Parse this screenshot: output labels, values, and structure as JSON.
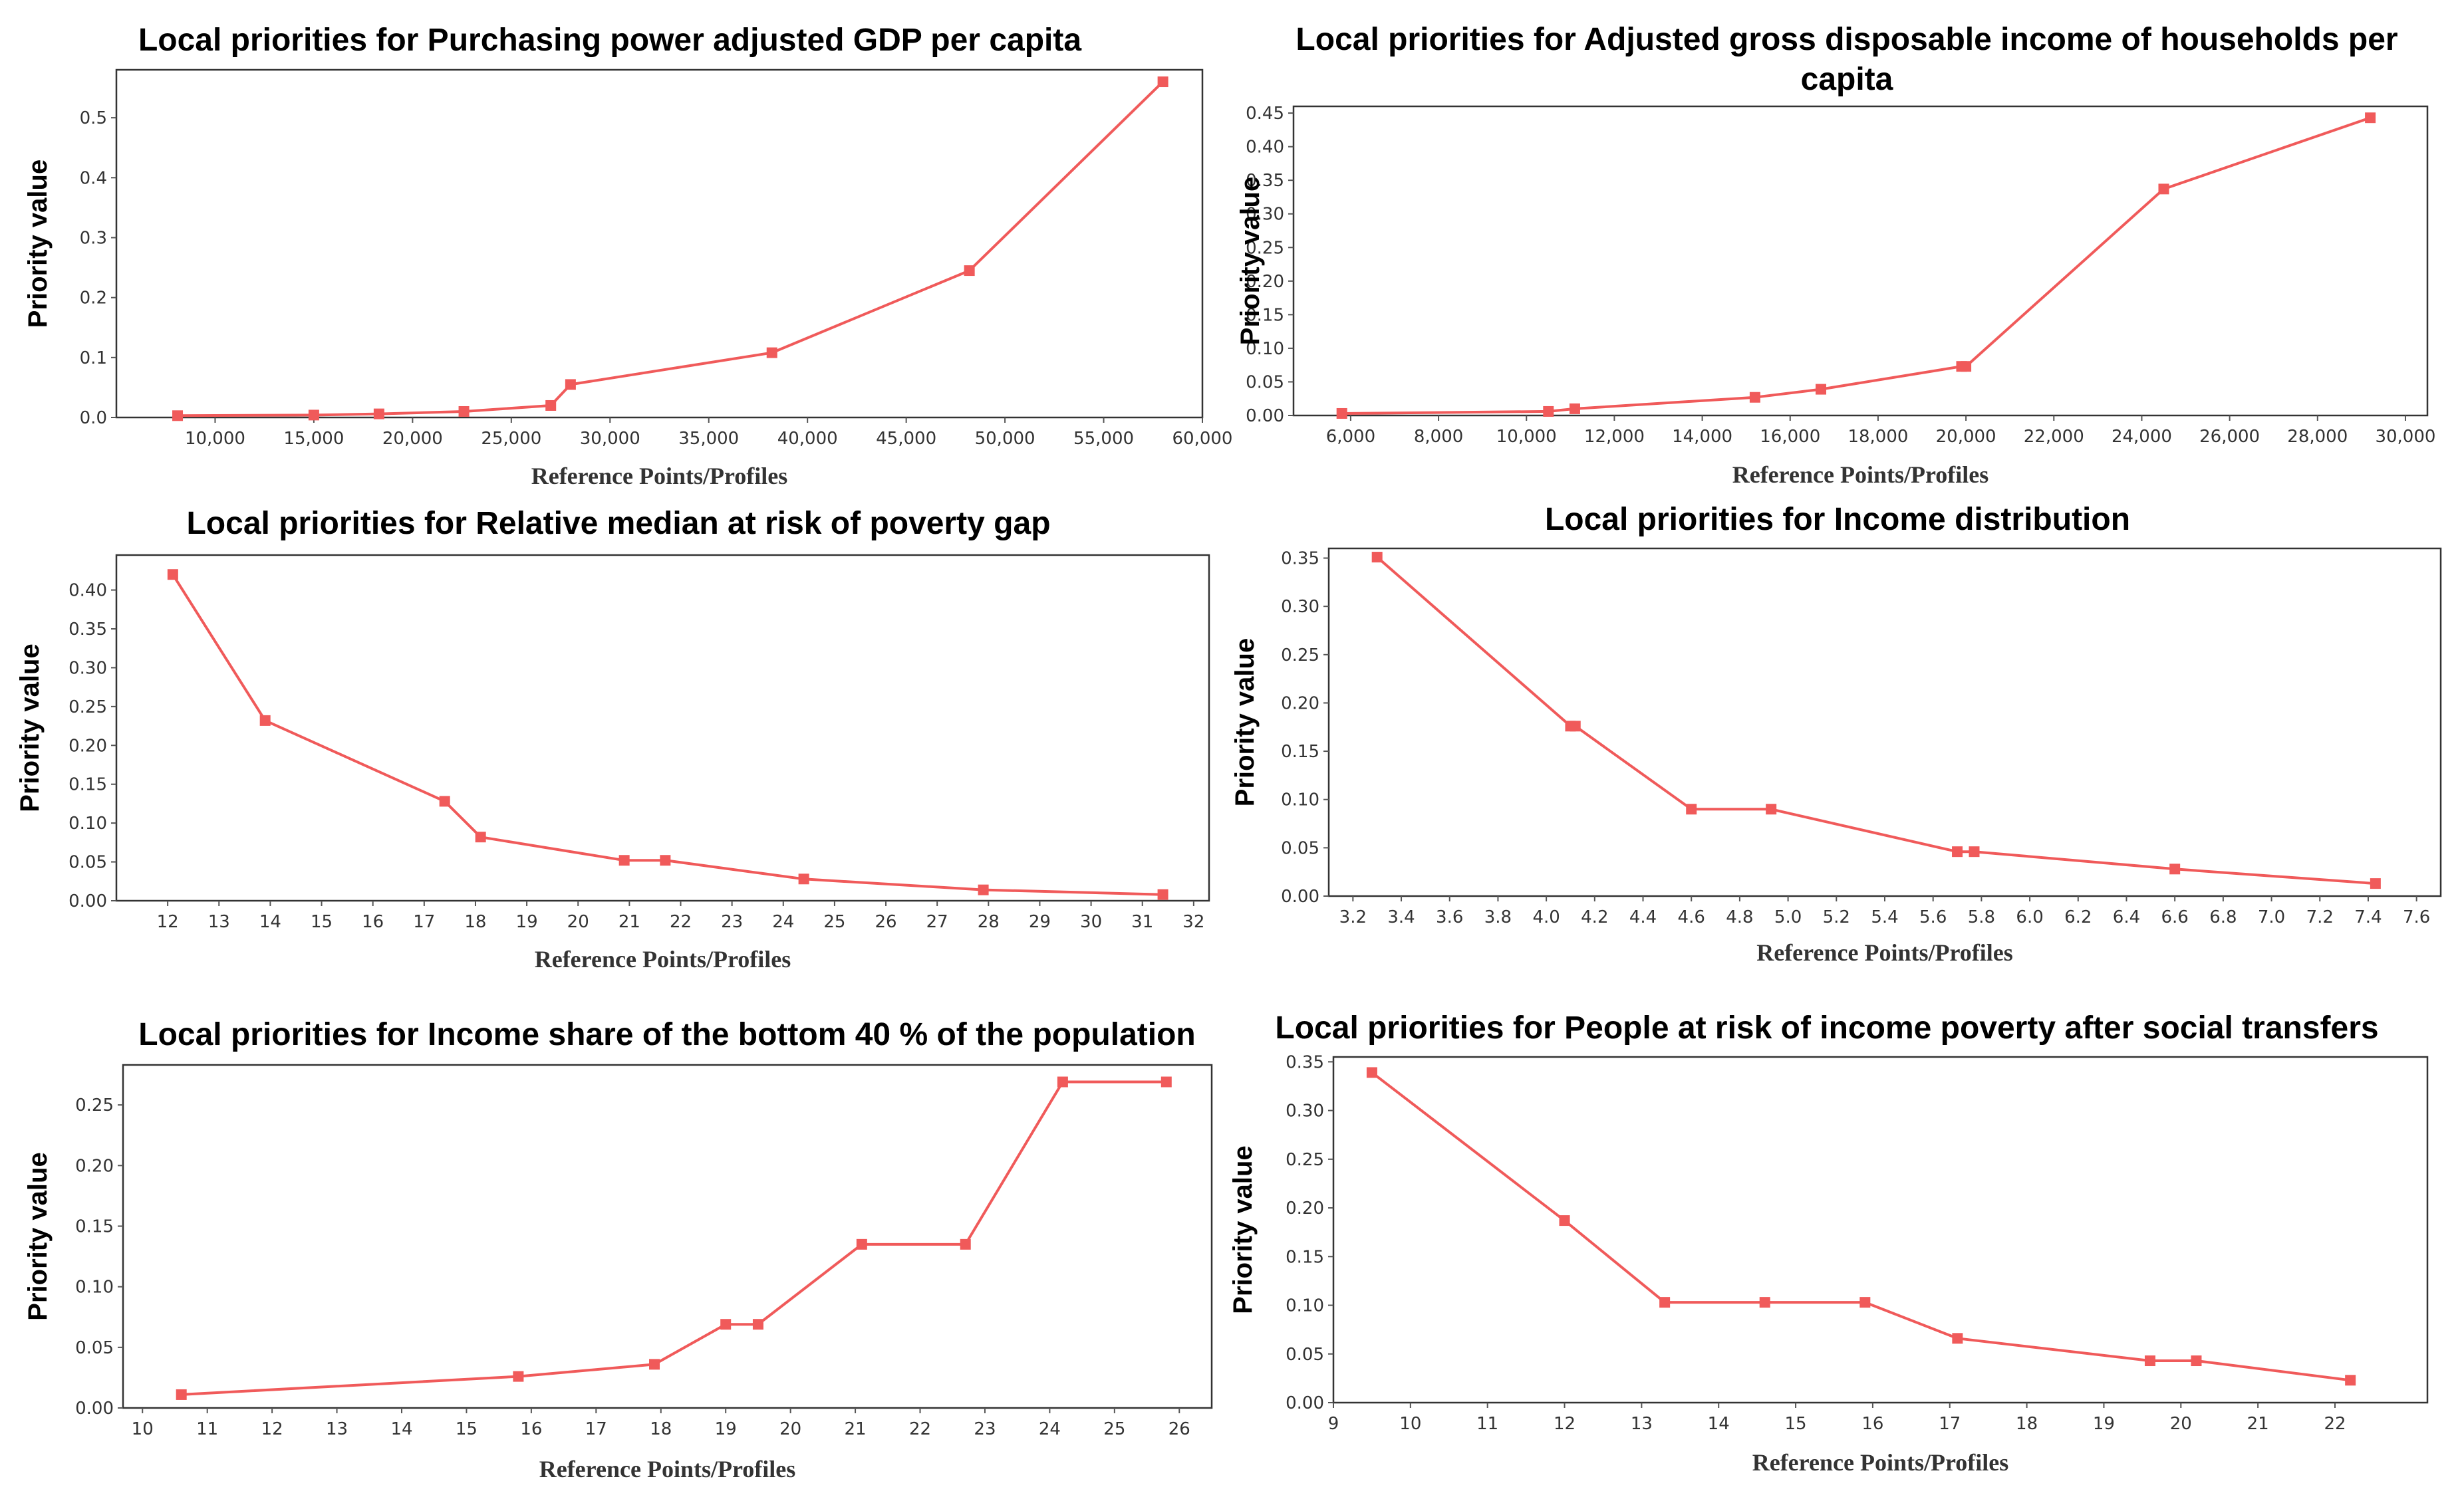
{
  "line_color": "#f05a5a",
  "chart_data": [
    {
      "type": "line",
      "title": "Local priorities for Purchasing power adjusted GDP per capita",
      "xlabel": "Reference Points/Profiles",
      "ylabel": "Priority value",
      "xlim": [
        5000,
        60000
      ],
      "ylim": [
        0,
        0.58
      ],
      "x_ticks": [
        10000,
        15000,
        20000,
        25000,
        30000,
        35000,
        40000,
        45000,
        50000,
        55000,
        60000
      ],
      "x_tick_labels": [
        "10,000",
        "15,000",
        "20,000",
        "25,000",
        "30,000",
        "35,000",
        "40,000",
        "45,000",
        "50,000",
        "55,000",
        "60,000"
      ],
      "y_ticks": [
        0,
        0.1,
        0.2,
        0.3,
        0.4,
        0.5
      ],
      "y_tick_labels": [
        "0.0",
        "0.1",
        "0.2",
        "0.3",
        "0.4",
        "0.5"
      ],
      "series": [
        {
          "name": "Local priorities",
          "x": [
            8100,
            15000,
            18300,
            22600,
            27000,
            28000,
            38200,
            48200,
            58000
          ],
          "y": [
            0.003,
            0.004,
            0.006,
            0.01,
            0.02,
            0.055,
            0.108,
            0.245,
            0.56
          ]
        }
      ]
    },
    {
      "type": "line",
      "title": "Local priorities for Adjusted gross disposable income of households per capita",
      "xlabel": "Reference Points/Profiles",
      "ylabel": "Priority value",
      "xlim": [
        4700,
        30500
      ],
      "ylim": [
        0,
        0.46
      ],
      "x_ticks": [
        6000,
        8000,
        10000,
        12000,
        14000,
        16000,
        18000,
        20000,
        22000,
        24000,
        26000,
        28000,
        30000
      ],
      "x_tick_labels": [
        "6,000",
        "8,000",
        "10,000",
        "12,000",
        "14,000",
        "16,000",
        "18,000",
        "20,000",
        "22,000",
        "24,000",
        "26,000",
        "28,000",
        "30,000"
      ],
      "y_ticks": [
        0,
        0.05,
        0.1,
        0.15,
        0.2,
        0.25,
        0.3,
        0.35,
        0.4,
        0.45
      ],
      "y_tick_labels": [
        "0.00",
        "0.05",
        "0.10",
        "0.15",
        "0.20",
        "0.25",
        "0.30",
        "0.35",
        "0.40",
        "0.45"
      ],
      "series": [
        {
          "name": "Local priorities",
          "x": [
            5800,
            10500,
            11100,
            15200,
            16700,
            19900,
            20000,
            24500,
            29200
          ],
          "y": [
            0.003,
            0.006,
            0.01,
            0.027,
            0.039,
            0.073,
            0.073,
            0.337,
            0.443
          ]
        }
      ]
    },
    {
      "type": "line",
      "title": "Local priorities for Relative median at risk of poverty gap",
      "xlabel": "Reference Points/Profiles",
      "ylabel": "Priority value",
      "xlim": [
        11,
        32.3
      ],
      "ylim": [
        0,
        0.445
      ],
      "x_ticks": [
        12,
        13,
        14,
        15,
        16,
        17,
        18,
        19,
        20,
        21,
        22,
        23,
        24,
        25,
        26,
        27,
        28,
        29,
        30,
        31,
        32
      ],
      "x_tick_labels": [
        "12",
        "13",
        "14",
        "15",
        "16",
        "17",
        "18",
        "19",
        "20",
        "21",
        "22",
        "23",
        "24",
        "25",
        "26",
        "27",
        "28",
        "29",
        "30",
        "31",
        "32"
      ],
      "y_ticks": [
        0,
        0.05,
        0.1,
        0.15,
        0.2,
        0.25,
        0.3,
        0.35,
        0.4
      ],
      "y_tick_labels": [
        "0.00",
        "0.05",
        "0.10",
        "0.15",
        "0.20",
        "0.25",
        "0.30",
        "0.35",
        "0.40"
      ],
      "series": [
        {
          "name": "Local priorities",
          "x": [
            12.1,
            13.9,
            17.4,
            18.1,
            20.9,
            21.7,
            24.4,
            27.9,
            31.4
          ],
          "y": [
            0.42,
            0.232,
            0.128,
            0.082,
            0.052,
            0.052,
            0.028,
            0.014,
            0.008
          ]
        }
      ]
    },
    {
      "type": "line",
      "title": "Local priorities for Income distribution",
      "xlabel": "Reference Points/Profiles",
      "ylabel": "Priority value",
      "xlim": [
        3.1,
        7.7
      ],
      "ylim": [
        0,
        0.36
      ],
      "x_ticks": [
        3.2,
        3.4,
        3.6,
        3.8,
        4.0,
        4.2,
        4.4,
        4.6,
        4.8,
        5.0,
        5.2,
        5.4,
        5.6,
        5.8,
        6.0,
        6.2,
        6.4,
        6.6,
        6.8,
        7.0,
        7.2,
        7.4,
        7.6
      ],
      "x_tick_labels": [
        "3.2",
        "3.4",
        "3.6",
        "3.8",
        "4.0",
        "4.2",
        "4.4",
        "4.6",
        "4.8",
        "5.0",
        "5.2",
        "5.4",
        "5.6",
        "5.8",
        "6.0",
        "6.2",
        "6.4",
        "6.6",
        "6.8",
        "7.0",
        "7.2",
        "7.4",
        "7.6"
      ],
      "y_ticks": [
        0,
        0.05,
        0.1,
        0.15,
        0.2,
        0.25,
        0.3,
        0.35
      ],
      "y_tick_labels": [
        "0.00",
        "0.05",
        "0.10",
        "0.15",
        "0.20",
        "0.25",
        "0.30",
        "0.35"
      ],
      "series": [
        {
          "name": "Local priorities",
          "x": [
            3.3,
            4.1,
            4.12,
            4.6,
            4.93,
            5.7,
            5.77,
            6.6,
            7.43
          ],
          "y": [
            0.351,
            0.176,
            0.176,
            0.09,
            0.09,
            0.046,
            0.046,
            0.028,
            0.013
          ]
        }
      ]
    },
    {
      "type": "line",
      "title": "Local priorities for Income share of the bottom 40 % of the population",
      "xlabel": "Reference Points/Profiles",
      "ylabel": "Priority value",
      "xlim": [
        9.7,
        26.5
      ],
      "ylim": [
        0,
        0.283
      ],
      "x_ticks": [
        10,
        11,
        12,
        13,
        14,
        15,
        16,
        17,
        18,
        19,
        20,
        21,
        22,
        23,
        24,
        25,
        26
      ],
      "x_tick_labels": [
        "10",
        "11",
        "12",
        "13",
        "14",
        "15",
        "16",
        "17",
        "18",
        "19",
        "20",
        "21",
        "22",
        "23",
        "24",
        "25",
        "26"
      ],
      "y_ticks": [
        0,
        0.05,
        0.1,
        0.15,
        0.2,
        0.25
      ],
      "y_tick_labels": [
        "0.00",
        "0.05",
        "0.10",
        "0.15",
        "0.20",
        "0.25"
      ],
      "series": [
        {
          "name": "Local priorities",
          "x": [
            10.6,
            15.8,
            17.9,
            19.0,
            19.5,
            21.1,
            22.7,
            24.2,
            25.8
          ],
          "y": [
            0.011,
            0.026,
            0.036,
            0.069,
            0.069,
            0.135,
            0.135,
            0.269,
            0.269
          ]
        }
      ]
    },
    {
      "type": "line",
      "title": "Local priorities for People at risk of income poverty after social transfers",
      "xlabel": "Reference Points/Profiles",
      "ylabel": "Priority value",
      "xlim": [
        9,
        23.2
      ],
      "ylim": [
        0,
        0.355
      ],
      "x_ticks": [
        9,
        10,
        11,
        12,
        13,
        14,
        15,
        16,
        17,
        18,
        19,
        20,
        21,
        22
      ],
      "x_tick_labels": [
        "9",
        "10",
        "11",
        "12",
        "13",
        "14",
        "15",
        "16",
        "17",
        "18",
        "19",
        "20",
        "21",
        "22"
      ],
      "y_ticks": [
        0,
        0.05,
        0.1,
        0.15,
        0.2,
        0.25,
        0.3,
        0.35
      ],
      "y_tick_labels": [
        "0.00",
        "0.05",
        "0.10",
        "0.15",
        "0.20",
        "0.25",
        "0.30",
        "0.35"
      ],
      "series": [
        {
          "name": "Local priorities",
          "x": [
            9.5,
            12.0,
            13.3,
            14.6,
            15.9,
            17.1,
            19.6,
            20.2,
            22.2
          ],
          "y": [
            0.339,
            0.187,
            0.103,
            0.103,
            0.103,
            0.066,
            0.043,
            0.043,
            0.023
          ]
        }
      ]
    }
  ]
}
